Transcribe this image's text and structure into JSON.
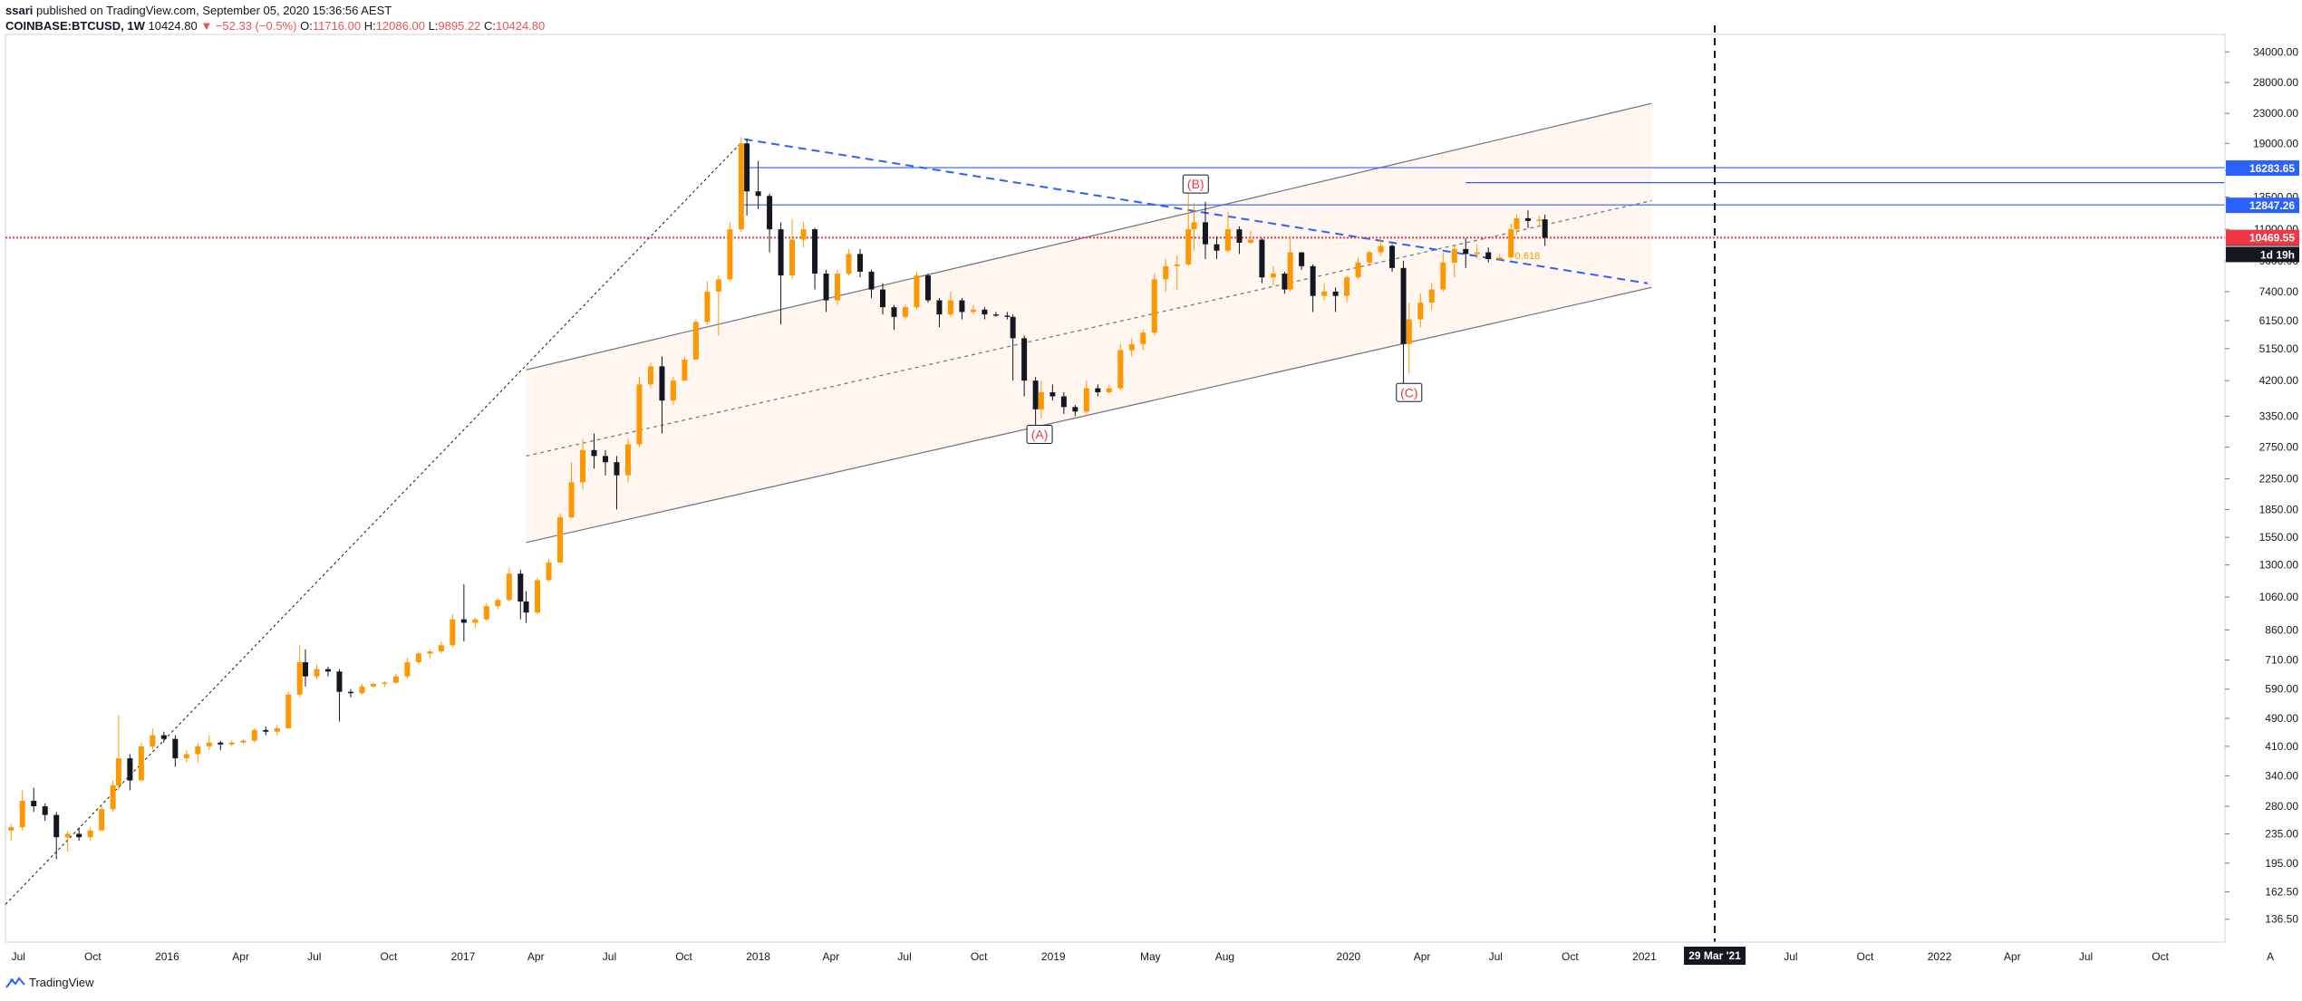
{
  "header": {
    "publisher": "ssari",
    "published_line": "published on TradingView.com, September 05, 2020 15:36:56 AEST",
    "symbol": "COINBASE:BTCUSD",
    "interval": ", 1W",
    "last": "10424.80",
    "change": "▼ −52.33 (−0.5%)",
    "o_label": "O:",
    "o_value": "11716.00",
    "h_label": "H:",
    "h_value": "12086.00",
    "l_label": "L:",
    "l_value": "9895.22",
    "c_label": "C:",
    "c_value": "10424.80"
  },
  "footer": {
    "brand": "TradingView"
  },
  "chart_data": {
    "type": "candlestick",
    "symbol": "COINBASE:BTCUSD",
    "interval": "1W",
    "y_scale": "log",
    "ylim": [
      118,
      38000
    ],
    "xlim": [
      "2015-06-15",
      "2022-12-20"
    ],
    "y_ticks": [
      34000,
      28000,
      23000,
      19000,
      16000,
      13500,
      11000,
      9000,
      7400,
      6150,
      5150,
      4200,
      3350,
      2750,
      2250,
      1850,
      1550,
      1300,
      1060,
      860,
      710,
      590,
      490,
      410,
      340,
      280,
      235,
      195,
      162.5,
      136.5
    ],
    "x_ticks": [
      {
        "date": "2015-07-01",
        "label": "Jul"
      },
      {
        "date": "2015-10-01",
        "label": "Oct"
      },
      {
        "date": "2016-01-01",
        "label": "2016"
      },
      {
        "date": "2016-04-01",
        "label": "Apr"
      },
      {
        "date": "2016-07-01",
        "label": "Jul"
      },
      {
        "date": "2016-10-01",
        "label": "Oct"
      },
      {
        "date": "2017-01-01",
        "label": "2017"
      },
      {
        "date": "2017-04-01",
        "label": "Apr"
      },
      {
        "date": "2017-07-01",
        "label": "Jul"
      },
      {
        "date": "2017-10-01",
        "label": "Oct"
      },
      {
        "date": "2018-01-01",
        "label": "2018"
      },
      {
        "date": "2018-04-01",
        "label": "Apr"
      },
      {
        "date": "2018-07-01",
        "label": "Jul"
      },
      {
        "date": "2018-10-01",
        "label": "Oct"
      },
      {
        "date": "2019-01-01",
        "label": "2019"
      },
      {
        "date": "2019-05-01",
        "label": "May"
      },
      {
        "date": "2019-08-01",
        "label": "Aug"
      },
      {
        "date": "2020-01-01",
        "label": "2020"
      },
      {
        "date": "2020-04-01",
        "label": "Apr"
      },
      {
        "date": "2020-07-01",
        "label": "Jul"
      },
      {
        "date": "2020-10-01",
        "label": "Oct"
      },
      {
        "date": "2021-01-01",
        "label": "2021"
      },
      {
        "date": "2021-07-01",
        "label": "Jul"
      },
      {
        "date": "2021-10-01",
        "label": "Oct"
      },
      {
        "date": "2022-01-01",
        "label": "2022"
      },
      {
        "date": "2022-04-01",
        "label": "Apr"
      },
      {
        "date": "2022-07-01",
        "label": "Jul"
      },
      {
        "date": "2022-10-01",
        "label": "Oct"
      }
    ],
    "cursor_date_label": "29 Mar '21",
    "cursor_date": "2021-03-29",
    "price_tags": [
      {
        "value": 16283.65,
        "label": "16283.65",
        "color": "#2962ff"
      },
      {
        "value": 10424.8,
        "label": "10424.80",
        "color": "#131722"
      },
      {
        "value": 12847.26,
        "label": "12847.26",
        "color": "#2962ff"
      },
      {
        "value": 10469.55,
        "label": "10469.55",
        "color": "#f23645"
      }
    ],
    "countdown_label": "1d 19h",
    "horizontal_levels": [
      {
        "value": 10424.8,
        "color": "#f23645",
        "style": "dotted"
      },
      {
        "value": 16283.65,
        "color": "#2962ff",
        "style": "solid",
        "from": "2017-12-10"
      },
      {
        "value": 12847.26,
        "color": "#2962ff",
        "style": "solid",
        "from": "2017-12-10"
      },
      {
        "value": 14800,
        "color": "#2962ff",
        "style": "solid",
        "from": "2020-05-25"
      }
    ],
    "wave_labels": [
      {
        "label": "(A)",
        "date": "2018-12-15",
        "value": 2950
      },
      {
        "label": "(B)",
        "date": "2019-06-26",
        "value": 14500
      },
      {
        "label": "(C)",
        "date": "2020-03-16",
        "value": 3850
      }
    ],
    "channel": {
      "upper": {
        "from": [
          "2017-03-20",
          4500
        ],
        "to": [
          "2021-01-10",
          24500
        ]
      },
      "middle": {
        "from": [
          "2017-03-20",
          2600
        ],
        "to": [
          "2021-01-10",
          13200
        ]
      },
      "lower": {
        "from": [
          "2017-03-20",
          1500
        ],
        "to": [
          "2021-01-10",
          7600
        ]
      }
    },
    "trendlines": [
      {
        "from": [
          "2017-12-15",
          19500
        ],
        "to": [
          "2021-01-05",
          7800
        ],
        "color": "#2962ff",
        "style": "dashed"
      },
      {
        "from": [
          "2015-06-15",
          150
        ],
        "to": [
          "2017-12-10",
          19000
        ],
        "color": "#131722",
        "style": "dotted"
      }
    ],
    "fib_label": "0.618",
    "candles": [
      [
        "2015-06-22",
        240,
        250,
        225,
        245
      ],
      [
        "2015-07-06",
        245,
        310,
        240,
        290
      ],
      [
        "2015-07-20",
        290,
        315,
        270,
        280
      ],
      [
        "2015-08-03",
        280,
        285,
        255,
        265
      ],
      [
        "2015-08-17",
        265,
        270,
        200,
        230
      ],
      [
        "2015-08-31",
        230,
        240,
        210,
        235
      ],
      [
        "2015-09-14",
        235,
        245,
        225,
        230
      ],
      [
        "2015-09-28",
        230,
        245,
        225,
        240
      ],
      [
        "2015-10-12",
        240,
        280,
        240,
        275
      ],
      [
        "2015-10-26",
        275,
        330,
        270,
        320
      ],
      [
        "2015-11-02",
        320,
        500,
        310,
        380
      ],
      [
        "2015-11-16",
        380,
        390,
        310,
        330
      ],
      [
        "2015-11-30",
        330,
        420,
        330,
        410
      ],
      [
        "2015-12-14",
        410,
        460,
        400,
        440
      ],
      [
        "2015-12-28",
        440,
        450,
        420,
        430
      ],
      [
        "2016-01-11",
        430,
        440,
        360,
        380
      ],
      [
        "2016-01-25",
        380,
        400,
        370,
        390
      ],
      [
        "2016-02-08",
        390,
        420,
        370,
        410
      ],
      [
        "2016-02-22",
        410,
        440,
        400,
        420
      ],
      [
        "2016-03-07",
        420,
        425,
        400,
        415
      ],
      [
        "2016-03-21",
        415,
        425,
        410,
        420
      ],
      [
        "2016-04-04",
        420,
        430,
        415,
        425
      ],
      [
        "2016-04-18",
        425,
        460,
        420,
        455
      ],
      [
        "2016-05-02",
        455,
        465,
        440,
        450
      ],
      [
        "2016-05-16",
        450,
        470,
        440,
        460
      ],
      [
        "2016-05-30",
        460,
        580,
        460,
        570
      ],
      [
        "2016-06-13",
        570,
        780,
        560,
        700
      ],
      [
        "2016-06-20",
        700,
        760,
        600,
        640
      ],
      [
        "2016-07-04",
        640,
        690,
        630,
        670
      ],
      [
        "2016-07-18",
        670,
        680,
        640,
        660
      ],
      [
        "2016-08-01",
        660,
        670,
        480,
        580
      ],
      [
        "2016-08-15",
        580,
        590,
        560,
        575
      ],
      [
        "2016-08-29",
        575,
        610,
        570,
        600
      ],
      [
        "2016-09-12",
        600,
        615,
        595,
        610
      ],
      [
        "2016-09-26",
        610,
        620,
        600,
        615
      ],
      [
        "2016-10-10",
        615,
        650,
        610,
        640
      ],
      [
        "2016-10-24",
        640,
        720,
        630,
        700
      ],
      [
        "2016-11-07",
        700,
        750,
        690,
        740
      ],
      [
        "2016-11-21",
        740,
        760,
        720,
        750
      ],
      [
        "2016-12-05",
        750,
        800,
        740,
        780
      ],
      [
        "2016-12-19",
        780,
        950,
        770,
        920
      ],
      [
        "2017-01-02",
        920,
        1150,
        800,
        900
      ],
      [
        "2017-01-16",
        900,
        930,
        870,
        920
      ],
      [
        "2017-01-30",
        920,
        1020,
        910,
        1000
      ],
      [
        "2017-02-13",
        1000,
        1050,
        980,
        1040
      ],
      [
        "2017-02-27",
        1040,
        1280,
        1030,
        1230
      ],
      [
        "2017-03-13",
        1230,
        1260,
        920,
        1030
      ],
      [
        "2017-03-20",
        1030,
        1100,
        900,
        960
      ],
      [
        "2017-04-03",
        960,
        1200,
        950,
        1180
      ],
      [
        "2017-04-17",
        1180,
        1350,
        1170,
        1320
      ],
      [
        "2017-05-01",
        1320,
        1800,
        1320,
        1760
      ],
      [
        "2017-05-15",
        1760,
        2500,
        1750,
        2200
      ],
      [
        "2017-05-29",
        2200,
        2900,
        2100,
        2700
      ],
      [
        "2017-06-12",
        2700,
        3000,
        2400,
        2600
      ],
      [
        "2017-06-26",
        2600,
        2700,
        2300,
        2500
      ],
      [
        "2017-07-10",
        2500,
        2600,
        1850,
        2300
      ],
      [
        "2017-07-24",
        2300,
        2900,
        2200,
        2800
      ],
      [
        "2017-08-07",
        2800,
        4300,
        2750,
        4100
      ],
      [
        "2017-08-21",
        4100,
        4700,
        4000,
        4600
      ],
      [
        "2017-09-04",
        4600,
        4900,
        3000,
        3700
      ],
      [
        "2017-09-18",
        3700,
        4300,
        3600,
        4200
      ],
      [
        "2017-10-02",
        4200,
        4900,
        4200,
        4800
      ],
      [
        "2017-10-16",
        4800,
        6200,
        4800,
        6100
      ],
      [
        "2017-10-30",
        6100,
        7900,
        6000,
        7400
      ],
      [
        "2017-11-13",
        7400,
        8200,
        5600,
        8000
      ],
      [
        "2017-11-27",
        8000,
        11500,
        7900,
        11000
      ],
      [
        "2017-12-11",
        11000,
        19800,
        10800,
        19000
      ],
      [
        "2017-12-18",
        19000,
        19600,
        12000,
        14000
      ],
      [
        "2018-01-01",
        14000,
        17000,
        12500,
        13600
      ],
      [
        "2018-01-15",
        13600,
        13800,
        9500,
        11000
      ],
      [
        "2018-01-29",
        11000,
        11500,
        6000,
        8200
      ],
      [
        "2018-02-12",
        8200,
        11700,
        8000,
        10300
      ],
      [
        "2018-02-26",
        10300,
        11500,
        9800,
        11000
      ],
      [
        "2018-03-12",
        11000,
        11100,
        7500,
        8300
      ],
      [
        "2018-03-26",
        8300,
        8500,
        6500,
        7000
      ],
      [
        "2018-04-09",
        7000,
        8500,
        6800,
        8300
      ],
      [
        "2018-04-23",
        8300,
        9700,
        8200,
        9400
      ],
      [
        "2018-05-07",
        9400,
        9700,
        8100,
        8400
      ],
      [
        "2018-05-21",
        8400,
        8500,
        7100,
        7500
      ],
      [
        "2018-06-04",
        7500,
        7800,
        6400,
        6700
      ],
      [
        "2018-06-18",
        6700,
        6800,
        5800,
        6300
      ],
      [
        "2018-07-02",
        6300,
        6800,
        6200,
        6700
      ],
      [
        "2018-07-16",
        6700,
        8400,
        6600,
        8200
      ],
      [
        "2018-07-30",
        8200,
        8300,
        6900,
        7000
      ],
      [
        "2018-08-13",
        7000,
        7100,
        5900,
        6400
      ],
      [
        "2018-08-27",
        6400,
        7400,
        6300,
        7000
      ],
      [
        "2018-09-10",
        7000,
        7100,
        6200,
        6500
      ],
      [
        "2018-09-24",
        6500,
        6800,
        6400,
        6600
      ],
      [
        "2018-10-08",
        6600,
        6700,
        6200,
        6400
      ],
      [
        "2018-10-22",
        6400,
        6500,
        6300,
        6350
      ],
      [
        "2018-11-05",
        6350,
        6500,
        6200,
        6300
      ],
      [
        "2018-11-12",
        6300,
        6400,
        4200,
        5500
      ],
      [
        "2018-11-26",
        5500,
        5600,
        3800,
        4200
      ],
      [
        "2018-12-10",
        4200,
        4300,
        3150,
        3500
      ],
      [
        "2018-12-17",
        3500,
        4200,
        3300,
        3900
      ],
      [
        "2018-12-31",
        3900,
        4100,
        3700,
        3800
      ],
      [
        "2019-01-14",
        3800,
        3900,
        3400,
        3550
      ],
      [
        "2019-01-28",
        3550,
        3600,
        3350,
        3450
      ],
      [
        "2019-02-11",
        3450,
        4200,
        3400,
        4000
      ],
      [
        "2019-02-25",
        4000,
        4100,
        3800,
        3900
      ],
      [
        "2019-03-11",
        3900,
        4100,
        3850,
        4000
      ],
      [
        "2019-03-25",
        4000,
        5300,
        3950,
        5100
      ],
      [
        "2019-04-08",
        5100,
        5500,
        4900,
        5300
      ],
      [
        "2019-04-22",
        5300,
        5800,
        5100,
        5700
      ],
      [
        "2019-05-06",
        5700,
        8300,
        5600,
        8000
      ],
      [
        "2019-05-20",
        8000,
        9100,
        7400,
        8700
      ],
      [
        "2019-06-03",
        8700,
        9300,
        7500,
        8800
      ],
      [
        "2019-06-17",
        8800,
        13900,
        8700,
        11000
      ],
      [
        "2019-06-24",
        11000,
        13000,
        9600,
        11500
      ],
      [
        "2019-07-08",
        11500,
        13100,
        9100,
        10000
      ],
      [
        "2019-07-22",
        10000,
        10500,
        9100,
        9600
      ],
      [
        "2019-08-05",
        9600,
        12300,
        9500,
        11000
      ],
      [
        "2019-08-19",
        11000,
        11200,
        9400,
        10100
      ],
      [
        "2019-09-02",
        10100,
        10900,
        10000,
        10300
      ],
      [
        "2019-09-16",
        10300,
        10400,
        7800,
        8100
      ],
      [
        "2019-09-30",
        8100,
        8700,
        7700,
        8300
      ],
      [
        "2019-10-14",
        8300,
        8400,
        7300,
        7500
      ],
      [
        "2019-10-21",
        7500,
        10500,
        7400,
        9500
      ],
      [
        "2019-11-04",
        9500,
        9500,
        8500,
        8700
      ],
      [
        "2019-11-18",
        8700,
        8800,
        6500,
        7200
      ],
      [
        "2019-12-02",
        7200,
        7800,
        7000,
        7400
      ],
      [
        "2019-12-16",
        7400,
        7600,
        6500,
        7200
      ],
      [
        "2019-12-30",
        7200,
        8200,
        6900,
        8100
      ],
      [
        "2020-01-13",
        8100,
        9200,
        8000,
        8900
      ],
      [
        "2020-01-27",
        8900,
        9600,
        8700,
        9500
      ],
      [
        "2020-02-10",
        9500,
        10500,
        9300,
        9900
      ],
      [
        "2020-02-24",
        9900,
        10000,
        8400,
        8600
      ],
      [
        "2020-03-09",
        8600,
        9000,
        3850,
        5300
      ],
      [
        "2020-03-16",
        5300,
        6900,
        4400,
        6200
      ],
      [
        "2020-03-30",
        6200,
        7300,
        5900,
        6900
      ],
      [
        "2020-04-13",
        6900,
        7800,
        6600,
        7500
      ],
      [
        "2020-04-27",
        7500,
        9500,
        7400,
        8900
      ],
      [
        "2020-05-11",
        8900,
        9900,
        8100,
        9700
      ],
      [
        "2020-05-25",
        9700,
        10400,
        8600,
        9400
      ],
      [
        "2020-06-08",
        9400,
        10000,
        9100,
        9500
      ],
      [
        "2020-06-22",
        9500,
        9800,
        8900,
        9100
      ],
      [
        "2020-07-06",
        9100,
        9400,
        9000,
        9200
      ],
      [
        "2020-07-20",
        9200,
        11400,
        9100,
        11000
      ],
      [
        "2020-07-27",
        11000,
        12100,
        10600,
        11800
      ],
      [
        "2020-08-10",
        11800,
        12400,
        11100,
        11600
      ],
      [
        "2020-08-24",
        11600,
        12000,
        11200,
        11700
      ],
      [
        "2020-08-31",
        11716,
        12086,
        9895.22,
        10424.8
      ]
    ]
  }
}
